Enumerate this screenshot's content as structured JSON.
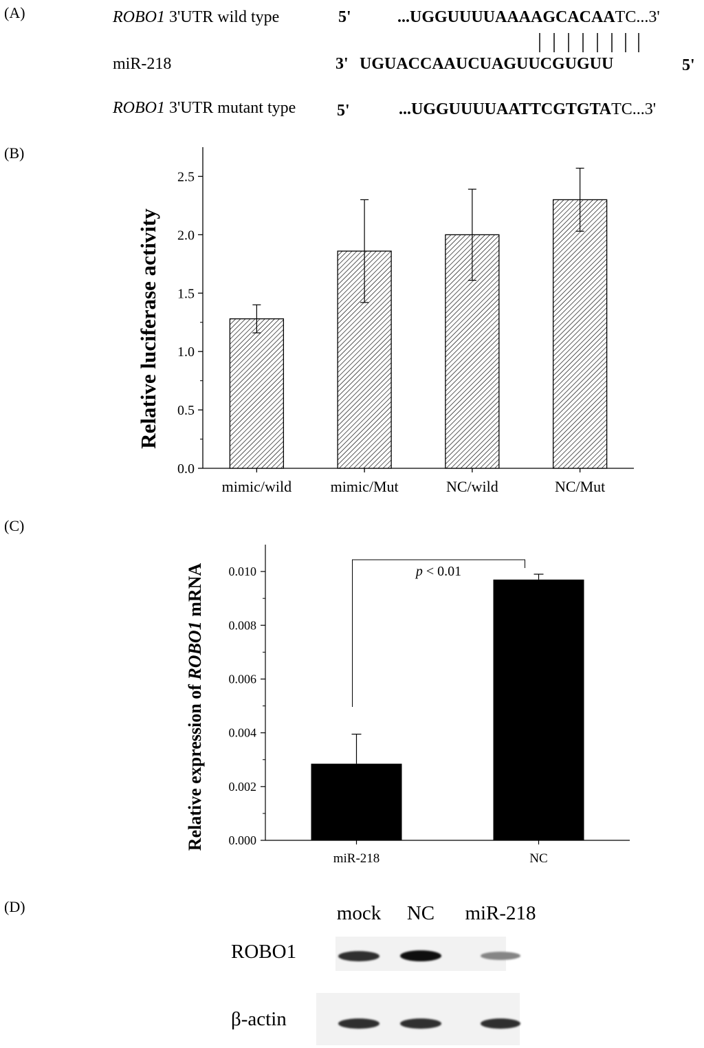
{
  "panels": {
    "a": {
      "label": "(A)"
    },
    "b": {
      "label": "(B)"
    },
    "c": {
      "label": "(C)"
    },
    "d": {
      "label": "(D)"
    }
  },
  "sequences": {
    "wild": {
      "gene": "ROBO1",
      "label_rest": " 3'UTR wild type",
      "end_left": "5'",
      "seq_prefix": "...UGGUUUUAA",
      "seq_bold": "AAGCACAA",
      "seq_suffix": "TC...3'"
    },
    "mir": {
      "label": "miR-218",
      "end_left": "3'",
      "seq_prefix": "UGUACCAAUCUAG",
      "seq_bold": "UUCGUGUU",
      "end_right": "5'"
    },
    "mut": {
      "gene": "ROBO1",
      "label_rest": " 3'UTR mutant type",
      "end_left": "5'",
      "seq_prefix": "...UGGUUUUAA",
      "seq_bold": "TTCGTGTA",
      "seq_suffix": "TC...3'"
    }
  },
  "chart_data": [
    {
      "type": "bar",
      "panel": "B",
      "categories": [
        "mimic/wild",
        "mimic/Mut",
        "NC/wild",
        "NC/Mut"
      ],
      "values": [
        1.28,
        1.86,
        2.0,
        2.3
      ],
      "errors": [
        0.12,
        0.44,
        0.39,
        0.27
      ],
      "ylabel": "Relative luciferase activity",
      "ylim": [
        0,
        2.75
      ],
      "yticks": [
        "0.0",
        "0.5",
        "1.0",
        "1.5",
        "2.0",
        "2.5"
      ],
      "bar_fill": "hatched",
      "grid": false
    },
    {
      "type": "bar",
      "panel": "C",
      "categories": [
        "miR-218",
        "NC"
      ],
      "values": [
        0.00285,
        0.0097
      ],
      "errors": [
        0.0011,
        0.0002
      ],
      "ylabel_prefix": "Relative expression of ",
      "ylabel_gene": "ROBO1",
      "ylabel_suffix": " mRNA",
      "ylim": [
        0,
        0.011
      ],
      "yticks": [
        "0.000",
        "0.002",
        "0.004",
        "0.006",
        "0.008",
        "0.010"
      ],
      "annotation": {
        "p": "p",
        "rest": " < 0.01"
      },
      "bar_color": "#000000",
      "grid": false
    }
  ],
  "blot": {
    "lanes": [
      "mock",
      "NC",
      "miR-218"
    ],
    "rows": [
      {
        "label": "ROBO1",
        "intensity": [
          0.85,
          1.0,
          0.45
        ]
      },
      {
        "label": "β-actin",
        "intensity": [
          0.85,
          0.85,
          0.85
        ]
      }
    ]
  }
}
